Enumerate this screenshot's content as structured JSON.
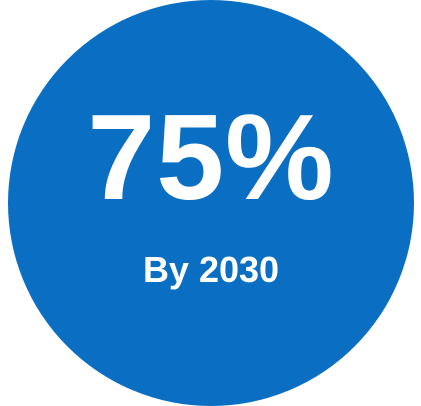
{
  "stat": {
    "value": "75%",
    "caption": "By 2030"
  },
  "colors": {
    "circle": "#0a6fc3",
    "text": "#ffffff",
    "background": "#ffffff"
  }
}
